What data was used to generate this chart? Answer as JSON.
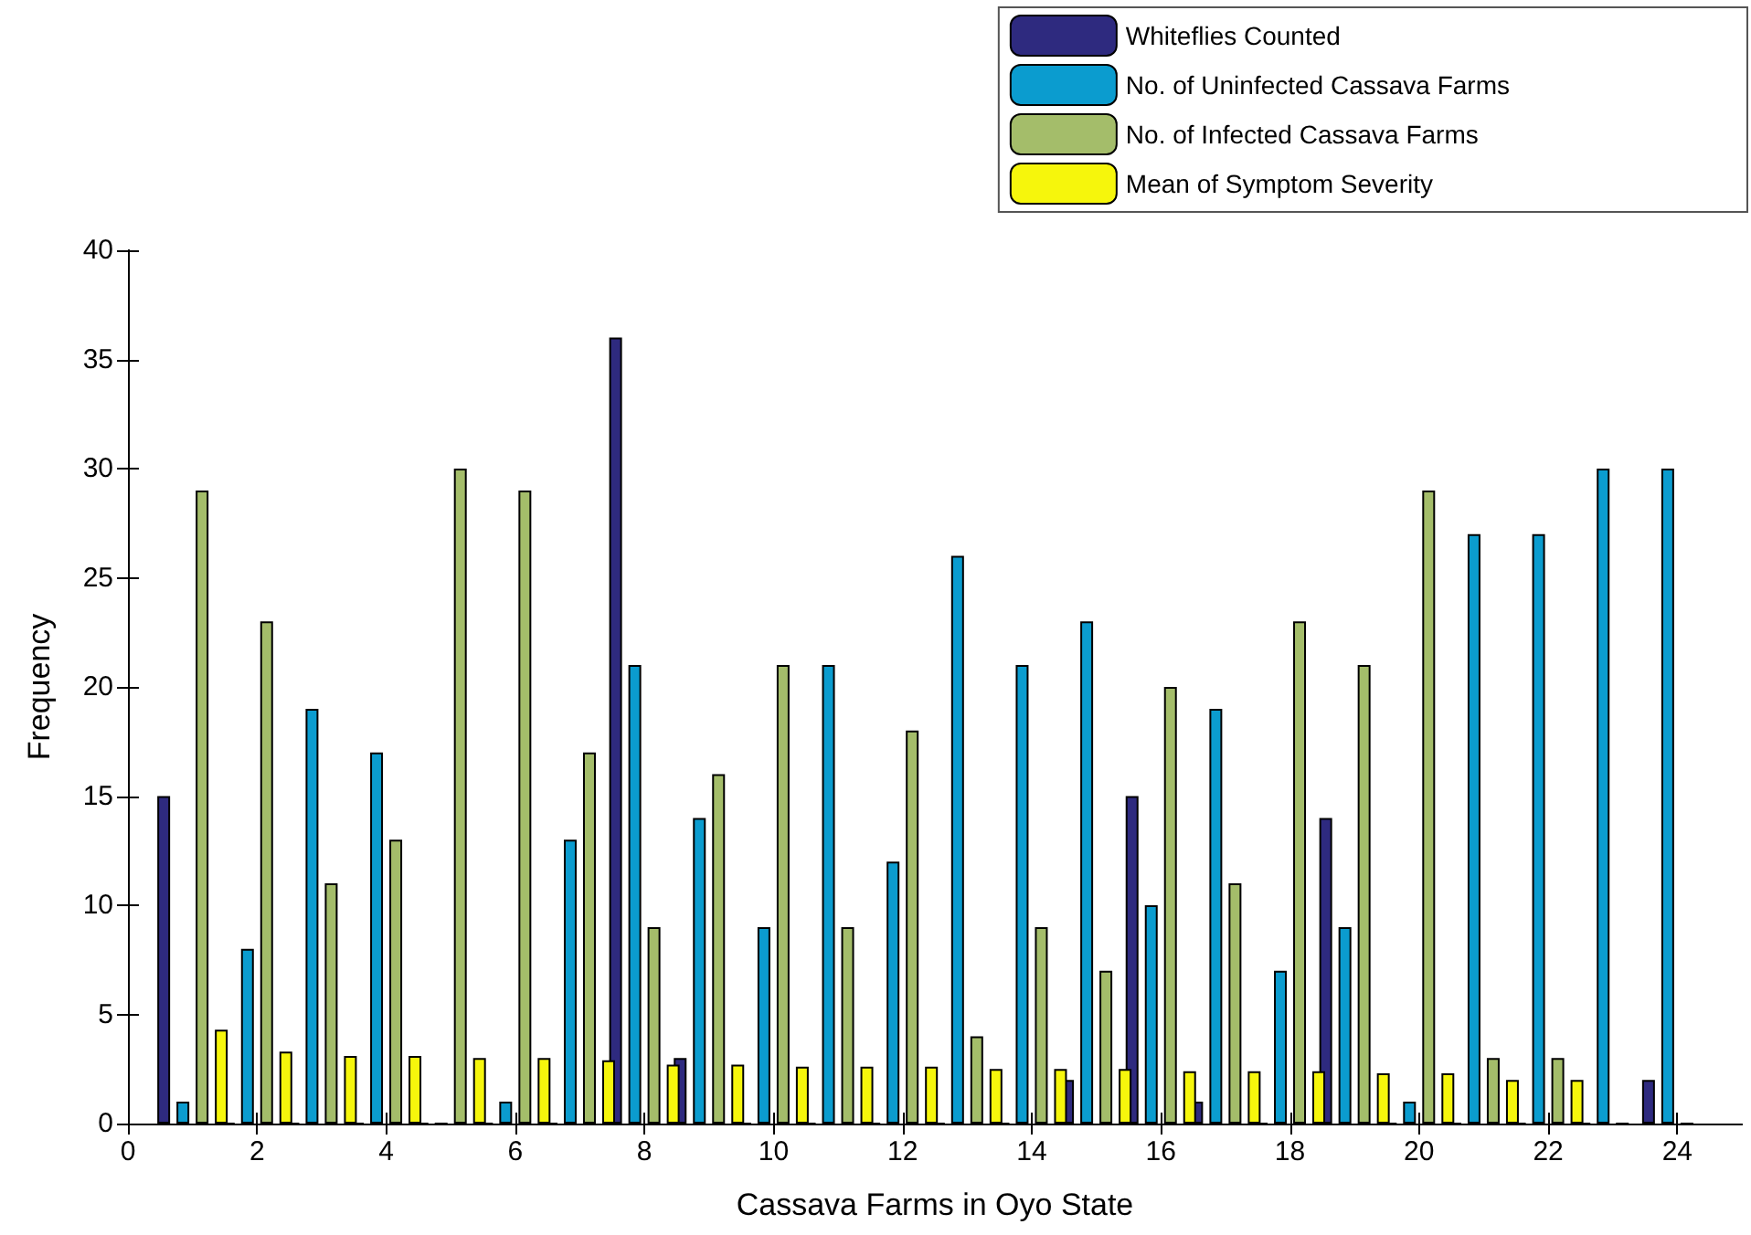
{
  "chart_data": {
    "type": "bar",
    "xlabel": "Cassava Farms in Oyo State",
    "ylabel": "Frequency",
    "x": [
      1,
      2,
      3,
      4,
      5,
      6,
      7,
      8,
      9,
      10,
      11,
      12,
      13,
      14,
      15,
      16,
      17,
      18,
      19,
      20,
      21,
      22,
      23,
      24
    ],
    "xlim": [
      0,
      25
    ],
    "xticks": [
      0,
      2,
      4,
      6,
      8,
      10,
      12,
      14,
      16,
      18,
      20,
      22,
      24
    ],
    "ylim": [
      0,
      40
    ],
    "yticks": [
      0,
      5,
      10,
      15,
      20,
      25,
      30,
      35,
      40
    ],
    "legend": "top right",
    "grid": false,
    "series": [
      {
        "name": "Whiteflies Counted",
        "color": "#2e2a7f",
        "values": [
          15,
          0,
          0,
          0,
          0,
          0,
          0,
          36,
          3,
          0,
          0,
          0,
          0,
          0,
          2,
          15,
          1,
          0,
          14,
          0,
          0,
          0,
          0,
          2
        ]
      },
      {
        "name": "No. of Uninfected Cassava Farms",
        "color": "#0b9ccf",
        "values": [
          1,
          8,
          19,
          17,
          0,
          1,
          13,
          21,
          14,
          9,
          21,
          12,
          26,
          21,
          23,
          10,
          19,
          7,
          9,
          1,
          27,
          27,
          30,
          30
        ]
      },
      {
        "name": "No. of Infected Cassava Farms",
        "color": "#a4bd6a",
        "values": [
          29,
          23,
          11,
          13,
          30,
          29,
          17,
          9,
          16,
          21,
          9,
          18,
          4,
          9,
          7,
          20,
          11,
          23,
          21,
          29,
          3,
          3,
          0,
          0
        ]
      },
      {
        "name": "Mean of Symptom Severity",
        "color": "#f6f60c",
        "values": [
          4.3,
          3.3,
          3.1,
          3.1,
          3.0,
          3.0,
          2.9,
          2.7,
          2.7,
          2.6,
          2.6,
          2.6,
          2.5,
          2.5,
          2.5,
          2.4,
          2.4,
          2.4,
          2.3,
          2.3,
          2.0,
          2.0,
          null,
          null
        ]
      }
    ]
  }
}
